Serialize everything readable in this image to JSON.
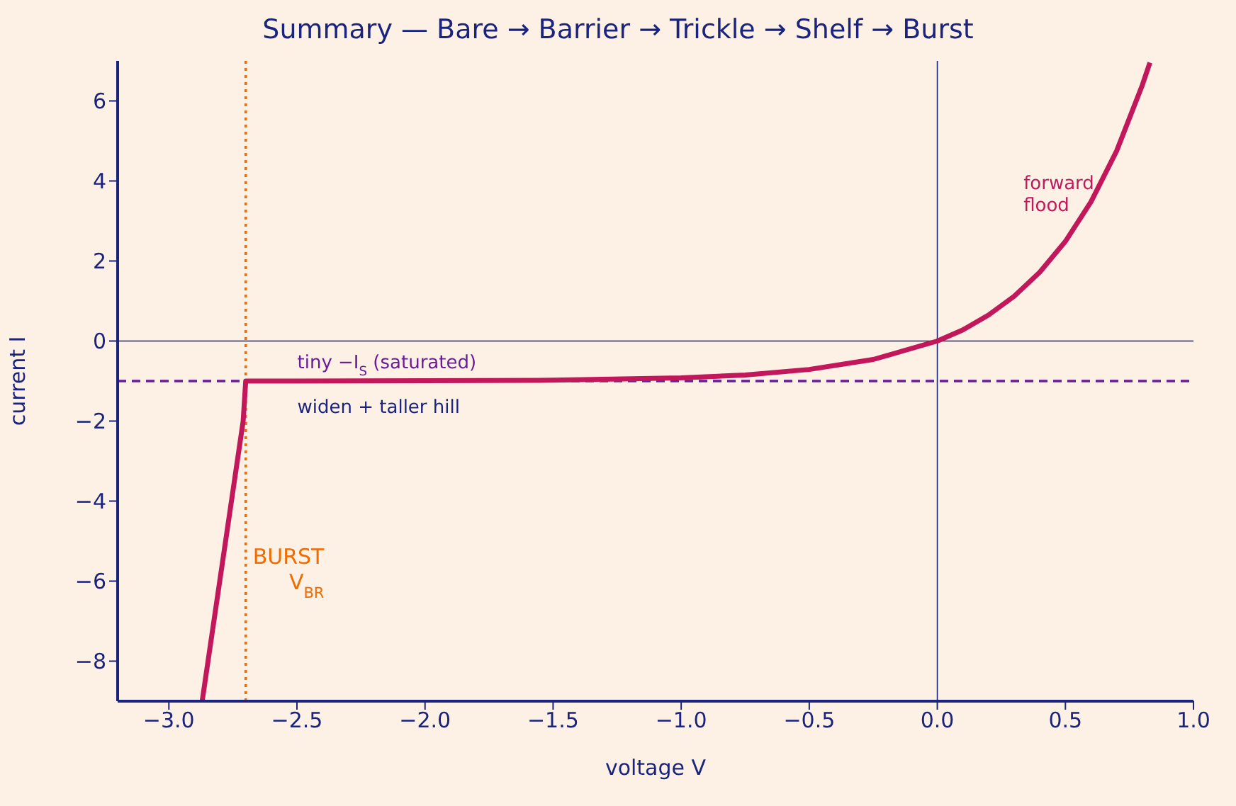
{
  "chart_data": {
    "type": "line",
    "title": "Summary — Bare → Barrier → Trickle → Shelf → Burst",
    "xlabel": "voltage  V",
    "ylabel": "current  I",
    "series": [
      {
        "color": "#c2185b",
        "x": [
          -2.87,
          -2.71,
          -2.7,
          -2.5,
          -2.0,
          -1.5,
          -1.0,
          -0.75,
          -0.5,
          -0.25,
          0,
          0.1,
          0.2,
          0.3,
          0.4,
          0.5,
          0.6,
          0.7,
          0.8,
          0.83
        ],
        "values": [
          -9,
          -2,
          -1,
          -1.0,
          -0.99,
          -0.98,
          -0.92,
          -0.85,
          -0.71,
          -0.46,
          0,
          0.28,
          0.65,
          1.12,
          1.72,
          2.49,
          3.48,
          4.75,
          6.39,
          6.96
        ]
      }
    ],
    "xlim": [
      -3.2,
      1.0
    ],
    "xticks": [
      {
        "value": -3,
        "label": "−3.0"
      },
      {
        "value": -2.5,
        "label": "−2.5"
      },
      {
        "value": -2,
        "label": "−2.0"
      },
      {
        "value": -1.5,
        "label": "−1.5"
      },
      {
        "value": -1,
        "label": "−1.0"
      },
      {
        "value": -0.5,
        "label": "−0.5"
      },
      {
        "value": 0,
        "label": "0.0"
      },
      {
        "value": 0.5,
        "label": "0.5"
      },
      {
        "value": 1,
        "label": "1.0"
      }
    ],
    "ylim": [
      -9,
      7
    ],
    "yticks": [
      {
        "value": -8,
        "label": "−8"
      },
      {
        "value": -6,
        "label": "−6"
      },
      {
        "value": -4,
        "label": "−4"
      },
      {
        "value": -2,
        "label": "−2"
      },
      0,
      2,
      4,
      6
    ],
    "ref_lines": [
      {
        "axis": "y",
        "value": 0,
        "color": "#1a237e",
        "line_style": "solid"
      },
      {
        "axis": "x",
        "value": 0,
        "color": "#1a237e",
        "line_style": "solid"
      },
      {
        "axis": "y",
        "value": -1,
        "color": "#6a1b9a",
        "line_style": "dashed"
      },
      {
        "axis": "x",
        "value": -2.7,
        "color": "#ef6c00",
        "line_style": "dotted"
      }
    ],
    "annotations": [
      "forward\nflood",
      "widen + taller hill",
      "tiny −I$_{S}$ (saturated)",
      "BURST\nV$_{BR}$"
    ],
    "grid": false,
    "legend": false,
    "marker": "none",
    "line_style": "solid"
  }
}
